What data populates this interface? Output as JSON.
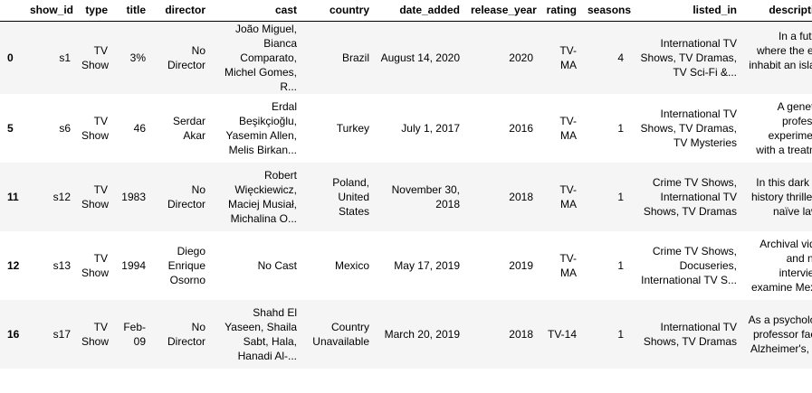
{
  "dataframe": {
    "columns": [
      "",
      "show_id",
      "type",
      "title",
      "director",
      "cast",
      "country",
      "date_added",
      "release_year",
      "rating",
      "seasons",
      "listed_in",
      "description"
    ],
    "rows": [
      {
        "index": "0",
        "cells": [
          "s1",
          "TV Show",
          "3%",
          "No Director",
          "João Miguel, Bianca Comparato, Michel Gomes, R...",
          "Brazil",
          "August 14, 2020",
          "2020",
          "TV-MA",
          "4",
          "International TV Shows, TV Dramas, TV Sci-Fi &...",
          "In a future where the elite inhabit an island ..."
        ]
      },
      {
        "index": "5",
        "cells": [
          "s6",
          "TV Show",
          "46",
          "Serdar Akar",
          "Erdal Beşikçioğlu, Yasemin Allen, Melis Birkan...",
          "Turkey",
          "July 1, 2017",
          "2016",
          "TV-MA",
          "1",
          "International TV Shows, TV Dramas, TV Mysteries",
          "A genetics professor experiments with a treatm..."
        ]
      },
      {
        "index": "11",
        "cells": [
          "s12",
          "TV Show",
          "1983",
          "No Director",
          "Robert Więckiewicz, Maciej Musiał, Michalina O...",
          "Poland, United States",
          "November 30, 2018",
          "2018",
          "TV-MA",
          "1",
          "Crime TV Shows, International TV Shows, TV Dramas",
          "In this dark alt-history thriller, a naïve law..."
        ]
      },
      {
        "index": "12",
        "cells": [
          "s13",
          "TV Show",
          "1994",
          "Diego Enrique Osorno",
          "No Cast",
          "Mexico",
          "May 17, 2019",
          "2019",
          "TV-MA",
          "1",
          "Crime TV Shows, Docuseries, International TV S...",
          "Archival video and new interviews examine Mexi..."
        ]
      },
      {
        "index": "16",
        "cells": [
          "s17",
          "TV Show",
          "Feb-09",
          "No Director",
          "Shahd El Yaseen, Shaila Sabt, Hala, Hanadi Al-...",
          "Country Unavailable",
          "March 20, 2019",
          "2018",
          "TV-14",
          "1",
          "International TV Shows, TV Dramas",
          "As a psychology professor faces Alzheimer's, h..."
        ]
      }
    ]
  }
}
